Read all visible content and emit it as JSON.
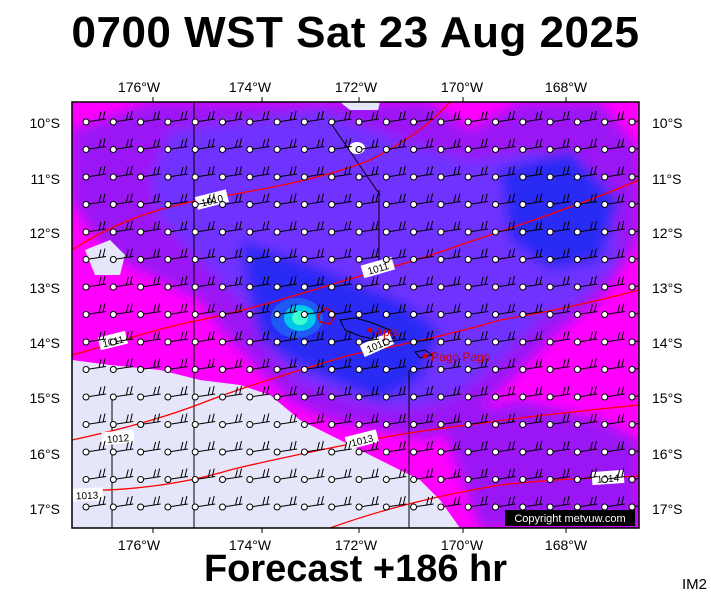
{
  "title": "0700 WST Sat 23 Aug 2025",
  "footer": "Forecast +186 hr",
  "corner_label": "IM2",
  "copyright": "Copyright metvuw.com",
  "lon_labels": [
    "176°W",
    "174°W",
    "172°W",
    "170°W",
    "168°W"
  ],
  "lat_labels": [
    "10°S",
    "11°S",
    "12°S",
    "13°S",
    "14°S",
    "15°S",
    "16°S",
    "17°S"
  ],
  "isobars": [
    "1010",
    "1011",
    "1011",
    "1012",
    "1012",
    "1013",
    "1013",
    "1014"
  ],
  "places": [
    "Apia",
    "Pago Pago"
  ],
  "colors": {
    "magenta": "#ff00ff",
    "violet": "#9b19f5",
    "purple": "#7030ff",
    "blue": "#2a2af5",
    "cyan": "#00e0e0",
    "lavender": "#e6e6fa",
    "isobar": "#ff0000"
  }
}
